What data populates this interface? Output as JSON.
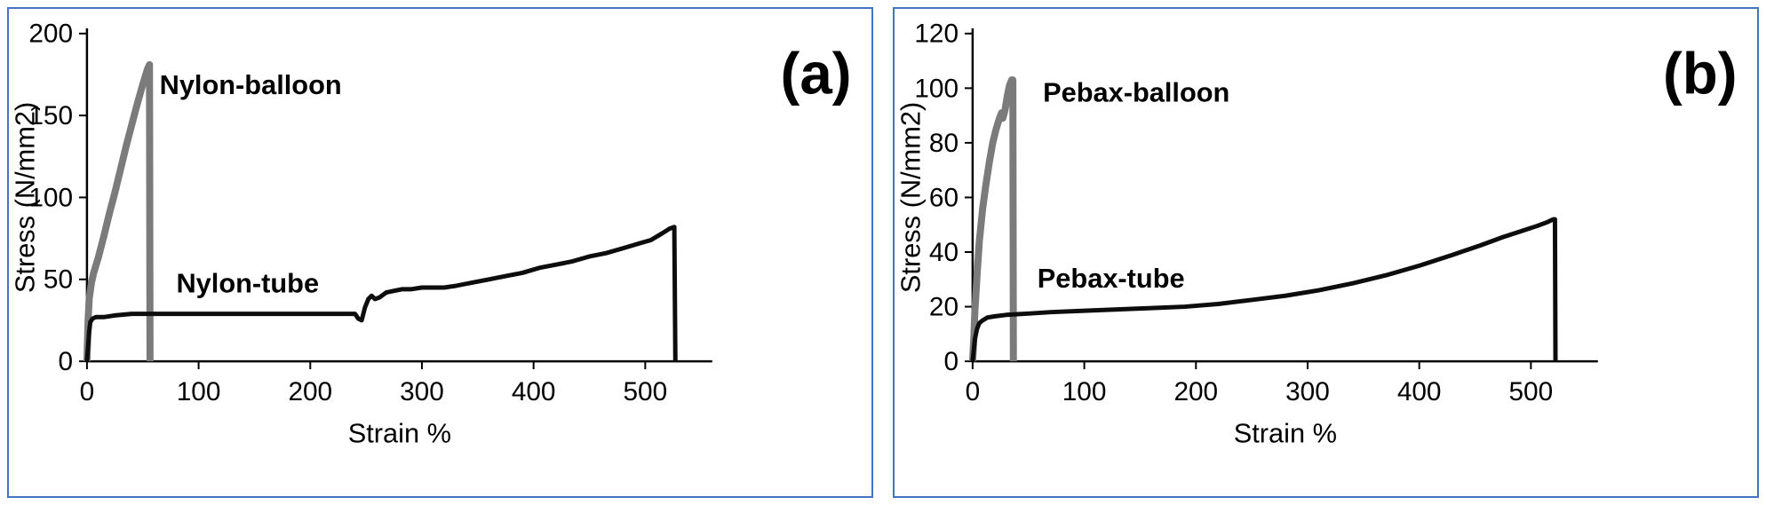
{
  "page": {
    "background": "#ffffff",
    "panel_border_color": "#4472c4",
    "text_color": "#000000"
  },
  "chart_data": [
    {
      "type": "line",
      "panel_label": "(a)",
      "title": "",
      "xlabel": "Strain %",
      "ylabel": "Stress (N/mm2)",
      "xlim": [
        0,
        560
      ],
      "ylim": [
        0,
        200
      ],
      "xticks": [
        0,
        100,
        200,
        300,
        400,
        500
      ],
      "yticks": [
        0,
        50,
        100,
        150,
        200
      ],
      "grid": false,
      "legend": "none",
      "series": [
        {
          "name": "Nylon-balloon",
          "color": "#7b7b7b",
          "width": 8,
          "points": [
            [
              0,
              0
            ],
            [
              1,
              25
            ],
            [
              2,
              38
            ],
            [
              4,
              48
            ],
            [
              6,
              54
            ],
            [
              10,
              63
            ],
            [
              15,
              76
            ],
            [
              20,
              90
            ],
            [
              25,
              103
            ],
            [
              30,
              117
            ],
            [
              35,
              131
            ],
            [
              40,
              144
            ],
            [
              45,
              157
            ],
            [
              50,
              169
            ],
            [
              54,
              178
            ],
            [
              56,
              181
            ],
            [
              56.5,
              0
            ]
          ]
        },
        {
          "name": "Nylon-tube",
          "color": "#0d0d0d",
          "width": 5,
          "points": [
            [
              0,
              0
            ],
            [
              2,
              18
            ],
            [
              3,
              24
            ],
            [
              5,
              26
            ],
            [
              8,
              27
            ],
            [
              15,
              27
            ],
            [
              25,
              28
            ],
            [
              40,
              29
            ],
            [
              60,
              29
            ],
            [
              100,
              29
            ],
            [
              140,
              29
            ],
            [
              180,
              29
            ],
            [
              220,
              29
            ],
            [
              240,
              29
            ],
            [
              243,
              26
            ],
            [
              246,
              25
            ],
            [
              249,
              33
            ],
            [
              252,
              38
            ],
            [
              255,
              40
            ],
            [
              258,
              38
            ],
            [
              262,
              39
            ],
            [
              268,
              42
            ],
            [
              275,
              43
            ],
            [
              282,
              44
            ],
            [
              290,
              44
            ],
            [
              300,
              45
            ],
            [
              310,
              45
            ],
            [
              320,
              45
            ],
            [
              330,
              46
            ],
            [
              345,
              48
            ],
            [
              360,
              50
            ],
            [
              375,
              52
            ],
            [
              390,
              54
            ],
            [
              405,
              57
            ],
            [
              420,
              59
            ],
            [
              435,
              61
            ],
            [
              450,
              64
            ],
            [
              465,
              66
            ],
            [
              480,
              69
            ],
            [
              495,
              72
            ],
            [
              505,
              74
            ],
            [
              515,
              78
            ],
            [
              522,
              81
            ],
            [
              526,
              82
            ],
            [
              527,
              0
            ]
          ]
        }
      ],
      "annotations": [
        {
          "text": "Nylon-balloon",
          "x": 65,
          "y": 163,
          "bold": true
        },
        {
          "text": "Nylon-tube",
          "x": 80,
          "y": 42,
          "bold": true
        }
      ]
    },
    {
      "type": "line",
      "panel_label": "(b)",
      "title": "",
      "xlabel": "Strain %",
      "ylabel": "Stress (N/mm2)",
      "xlim": [
        0,
        560
      ],
      "ylim": [
        0,
        120
      ],
      "xticks": [
        0,
        100,
        200,
        300,
        400,
        500
      ],
      "yticks": [
        0,
        20,
        40,
        60,
        80,
        100,
        120
      ],
      "grid": false,
      "legend": "none",
      "series": [
        {
          "name": "Pebax-balloon",
          "color": "#7b7b7b",
          "width": 8,
          "points": [
            [
              0,
              0
            ],
            [
              1,
              8
            ],
            [
              2,
              18
            ],
            [
              4,
              32
            ],
            [
              6,
              44
            ],
            [
              9,
              56
            ],
            [
              12,
              65
            ],
            [
              15,
              73
            ],
            [
              18,
              80
            ],
            [
              21,
              85
            ],
            [
              24,
              89
            ],
            [
              26,
              91
            ],
            [
              27,
              89
            ],
            [
              29,
              92
            ],
            [
              31,
              97
            ],
            [
              33,
              101
            ],
            [
              35,
              103
            ],
            [
              36,
              103
            ],
            [
              36.5,
              0
            ]
          ]
        },
        {
          "name": "Pebax-tube",
          "color": "#0d0d0d",
          "width": 5,
          "points": [
            [
              0,
              0
            ],
            [
              1,
              4
            ],
            [
              2,
              8
            ],
            [
              4,
              12
            ],
            [
              6,
              14
            ],
            [
              9,
              15
            ],
            [
              13,
              16
            ],
            [
              20,
              16.5
            ],
            [
              30,
              17
            ],
            [
              50,
              17.5
            ],
            [
              70,
              18
            ],
            [
              100,
              18.5
            ],
            [
              130,
              19
            ],
            [
              160,
              19.5
            ],
            [
              190,
              20
            ],
            [
              220,
              21
            ],
            [
              250,
              22.5
            ],
            [
              280,
              24
            ],
            [
              310,
              26
            ],
            [
              340,
              28.5
            ],
            [
              370,
              31.5
            ],
            [
              400,
              35
            ],
            [
              430,
              39
            ],
            [
              455,
              42.5
            ],
            [
              475,
              45.5
            ],
            [
              490,
              47.5
            ],
            [
              505,
              49.5
            ],
            [
              515,
              51
            ],
            [
              520,
              52
            ],
            [
              521.5,
              52
            ],
            [
              522,
              0
            ]
          ]
        }
      ],
      "annotations": [
        {
          "text": "Pebax-balloon",
          "x": 63,
          "y": 95,
          "bold": true
        },
        {
          "text": "Pebax-tube",
          "x": 58,
          "y": 27,
          "bold": true
        }
      ]
    }
  ]
}
